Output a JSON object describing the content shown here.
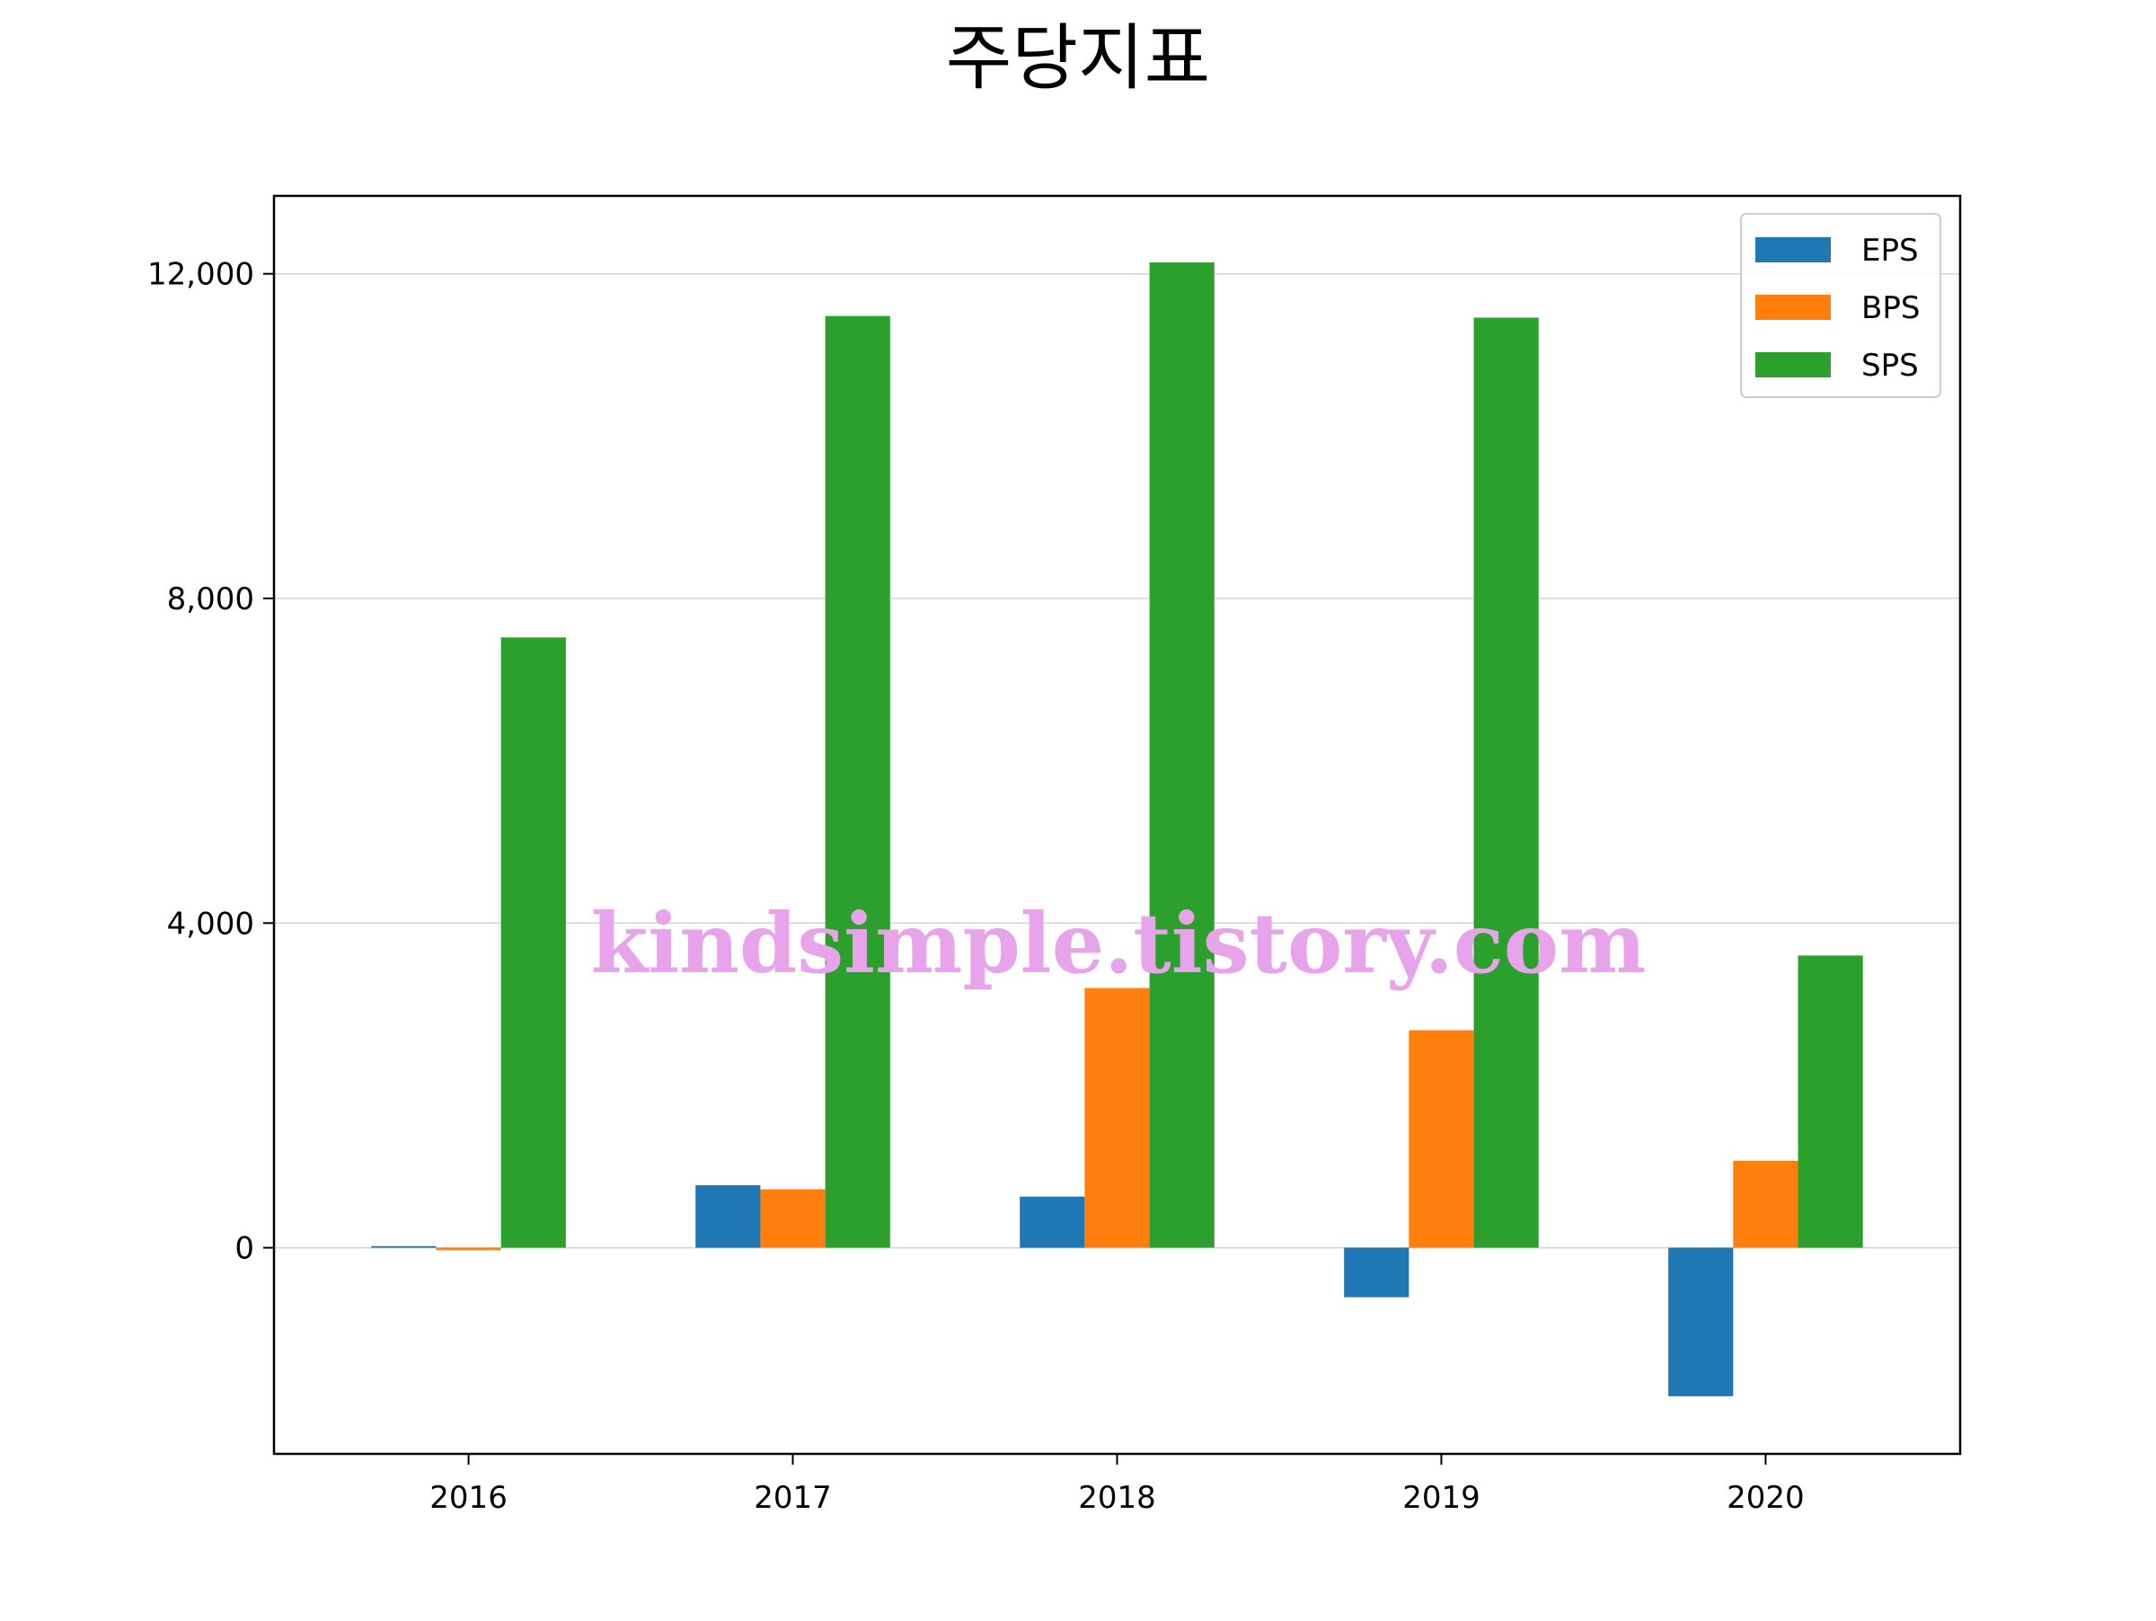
{
  "chart_data": {
    "type": "bar",
    "title": "주당지표",
    "categories": [
      "2016",
      "2017",
      "2018",
      "2019",
      "2020"
    ],
    "series": [
      {
        "name": "EPS",
        "color": "#1f77b4",
        "values": [
          20,
          770,
          630,
          -610,
          -1830
        ]
      },
      {
        "name": "BPS",
        "color": "#ff7f0e",
        "values": [
          -30,
          720,
          3200,
          2680,
          1070
        ]
      },
      {
        "name": "SPS",
        "color": "#2ca02c",
        "values": [
          7520,
          11480,
          12140,
          11460,
          3600
        ]
      }
    ],
    "yticks": [
      0,
      4000,
      8000,
      12000
    ],
    "ytick_labels": [
      "0",
      "4,000",
      "8,000",
      "12,000"
    ],
    "ylim": [
      -2540,
      12960
    ],
    "grid": "horizontal",
    "legend_position": "top-right",
    "xlabel": "",
    "ylabel": ""
  },
  "watermark": {
    "text": "kindsimple.tistory.com"
  }
}
